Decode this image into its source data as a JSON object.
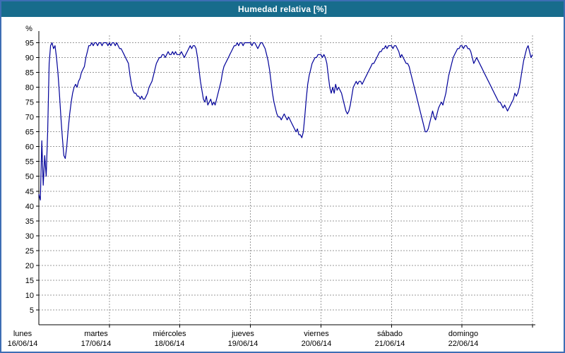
{
  "window": {
    "title": "Humedad relativa [%]",
    "colors": {
      "border": "#3d6eb4",
      "title_bg": "#176c8c",
      "title_text": "#ffffff"
    }
  },
  "chart_data": {
    "type": "line",
    "title": "Humedad relativa [%]",
    "ylabel": "%",
    "xlabel": "",
    "ylim": [
      0,
      97.5
    ],
    "yticks": [
      5,
      10,
      15,
      20,
      25,
      30,
      35,
      40,
      45,
      50,
      55,
      60,
      65,
      70,
      75,
      80,
      85,
      90,
      95
    ],
    "grid": true,
    "legend_position": "none",
    "line_color": "#000099",
    "grid_color": "#999999",
    "x_total_hours": 168,
    "step_hours": 0.5,
    "days": [
      {
        "name": "lunes",
        "date": "16/06/14"
      },
      {
        "name": "martes",
        "date": "17/06/14"
      },
      {
        "name": "miércoles",
        "date": "18/06/14"
      },
      {
        "name": "jueves",
        "date": "19/06/14"
      },
      {
        "name": "viernes",
        "date": "20/06/14"
      },
      {
        "name": "sábado",
        "date": "21/06/14"
      },
      {
        "name": "domingo",
        "date": "22/06/14"
      }
    ],
    "values": [
      44,
      42,
      62,
      47,
      57,
      50,
      65,
      88,
      94,
      95,
      93,
      94,
      90,
      85,
      78,
      70,
      63,
      57,
      56,
      60,
      66,
      71,
      75,
      78,
      80,
      81,
      80,
      82,
      83,
      85,
      86,
      87,
      90,
      92,
      94,
      94,
      95,
      94,
      95,
      95,
      94,
      95,
      95,
      94,
      95,
      95,
      95,
      94,
      95,
      94,
      95,
      95,
      94,
      95,
      94,
      93,
      93,
      92,
      91,
      90,
      89,
      88,
      84,
      81,
      79,
      78,
      78,
      77,
      77,
      76,
      77,
      76,
      76,
      77,
      78,
      80,
      81,
      82,
      84,
      86,
      88,
      89,
      90,
      90,
      91,
      91,
      90,
      91,
      92,
      91,
      91,
      92,
      91,
      92,
      91,
      91,
      91,
      92,
      91,
      90,
      91,
      92,
      93,
      94,
      93,
      94,
      94,
      93,
      90,
      86,
      82,
      79,
      76,
      75,
      77,
      74,
      75,
      76,
      74,
      75,
      74,
      76,
      78,
      80,
      82,
      85,
      87,
      88,
      89,
      90,
      91,
      92,
      93,
      94,
      94,
      95,
      94,
      95,
      95,
      94,
      95,
      95,
      95,
      95,
      95,
      94,
      95,
      95,
      94,
      93,
      94,
      95,
      95,
      94,
      93,
      91,
      89,
      86,
      82,
      78,
      75,
      73,
      71,
      70,
      70,
      69,
      70,
      71,
      70,
      69,
      70,
      69,
      68,
      67,
      66,
      65,
      66,
      64,
      64,
      63,
      65,
      70,
      76,
      81,
      84,
      86,
      88,
      89,
      90,
      90,
      91,
      91,
      91,
      90,
      91,
      90,
      88,
      84,
      80,
      78,
      80,
      78,
      81,
      79,
      80,
      79,
      78,
      76,
      74,
      72,
      71,
      72,
      74,
      77,
      80,
      81,
      82,
      81,
      82,
      82,
      81,
      82,
      83,
      84,
      85,
      86,
      87,
      88,
      88,
      89,
      90,
      91,
      92,
      92,
      93,
      93,
      94,
      93,
      94,
      94,
      94,
      93,
      94,
      94,
      93,
      92,
      90,
      91,
      90,
      89,
      88,
      88,
      87,
      85,
      83,
      81,
      79,
      77,
      75,
      73,
      71,
      69,
      67,
      65,
      65,
      66,
      68,
      70,
      72,
      70,
      69,
      71,
      73,
      74,
      75,
      74,
      76,
      78,
      81,
      84,
      86,
      88,
      90,
      91,
      92,
      93,
      93,
      94,
      94,
      93,
      94,
      94,
      93,
      93,
      92,
      90,
      88,
      89,
      90,
      89,
      88,
      87,
      86,
      85,
      84,
      83,
      82,
      81,
      80,
      79,
      78,
      77,
      76,
      75,
      75,
      74,
      73,
      74,
      73,
      72,
      73,
      74,
      75,
      76,
      78,
      77,
      78,
      80,
      83,
      86,
      89,
      91,
      93,
      94,
      92,
      90,
      91
    ]
  }
}
